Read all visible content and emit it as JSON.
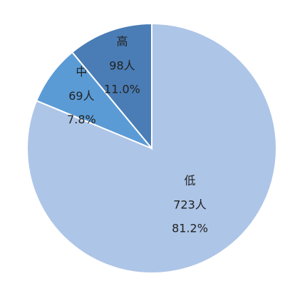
{
  "chart_data": {
    "type": "pie",
    "categories": [
      "低",
      "中",
      "高"
    ],
    "values": [
      723,
      69,
      98
    ],
    "value_labels": [
      "723人",
      "69人",
      "98人"
    ],
    "percentages": [
      81.2,
      7.8,
      11.0
    ],
    "percentage_labels": [
      "81.2%",
      "7.8%",
      "11.0%"
    ],
    "colors": [
      "#adc5e7",
      "#5b9bd5",
      "#4a7db6"
    ]
  }
}
